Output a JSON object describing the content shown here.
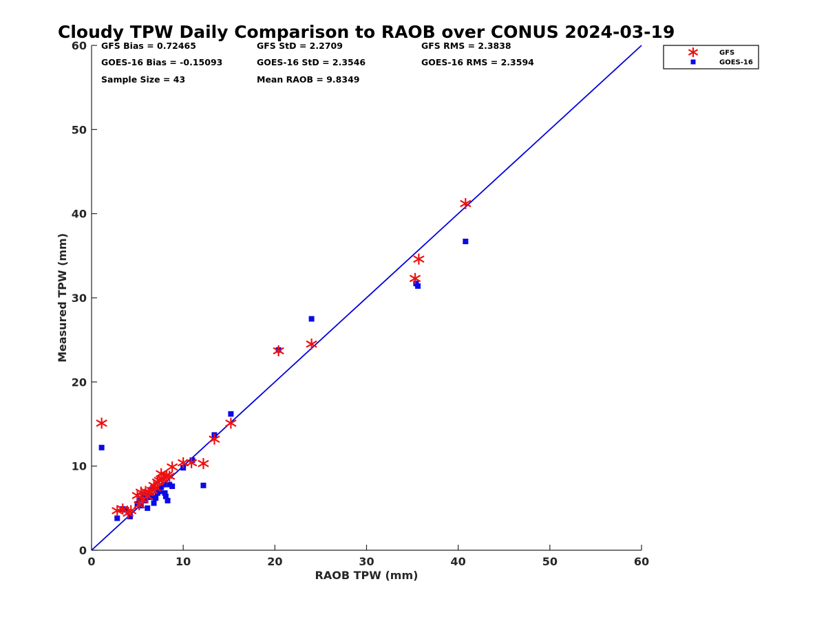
{
  "chart_data": {
    "type": "scatter",
    "title": "Cloudy TPW Daily Comparison to RAOB over CONUS 2024-03-19",
    "xlabel": "RAOB TPW (mm)",
    "ylabel": "Measured TPW (mm)",
    "xlim": [
      0,
      60
    ],
    "ylim": [
      0,
      60
    ],
    "xticks": [
      "0",
      "10",
      "20",
      "30",
      "40",
      "50",
      "60"
    ],
    "yticks": [
      "0",
      "10",
      "20",
      "30",
      "40",
      "50",
      "60"
    ],
    "grid": false,
    "legend_position": "outside-top-right",
    "reference_line": {
      "x": [
        0,
        60
      ],
      "y": [
        0,
        60
      ],
      "color": "#0000dd"
    },
    "stats": [
      [
        "GFS Bias = 0.72465",
        "GFS StD = 2.2709",
        "GFS RMS = 2.3838"
      ],
      [
        "GOES-16 Bias = -0.15093",
        "GOES-16 StD = 2.3546",
        "GOES-16 RMS = 2.3594"
      ],
      [
        "Sample Size = 43",
        "Mean RAOB = 9.8349",
        ""
      ]
    ],
    "series": [
      {
        "name": "GFS",
        "marker": "asterisk",
        "color": "#ee1111",
        "points": [
          [
            1.1,
            15.1
          ],
          [
            2.8,
            4.7
          ],
          [
            3.4,
            4.9
          ],
          [
            4.0,
            4.4
          ],
          [
            4.3,
            4.7
          ],
          [
            5.0,
            6.5
          ],
          [
            5.2,
            5.4
          ],
          [
            5.4,
            6.9
          ],
          [
            5.6,
            6.0
          ],
          [
            5.9,
            7.0
          ],
          [
            6.1,
            6.4
          ],
          [
            6.3,
            6.9
          ],
          [
            6.6,
            7.1
          ],
          [
            6.8,
            7.7
          ],
          [
            7.0,
            7.4
          ],
          [
            7.2,
            8.1
          ],
          [
            7.4,
            8.3
          ],
          [
            7.6,
            9.1
          ],
          [
            7.8,
            8.4
          ],
          [
            8.0,
            8.8
          ],
          [
            8.2,
            8.9
          ],
          [
            8.5,
            8.8
          ],
          [
            8.8,
            9.9
          ],
          [
            10.0,
            10.4
          ],
          [
            10.9,
            10.4
          ],
          [
            12.2,
            10.3
          ],
          [
            13.4,
            13.2
          ],
          [
            15.2,
            15.1
          ],
          [
            20.4,
            23.7
          ],
          [
            24.0,
            24.5
          ],
          [
            35.3,
            32.3
          ],
          [
            35.7,
            34.6
          ],
          [
            40.8,
            41.2
          ]
        ]
      },
      {
        "name": "GOES-16",
        "marker": "square",
        "color": "#0a0ae6",
        "points": [
          [
            1.1,
            12.2
          ],
          [
            2.8,
            3.8
          ],
          [
            3.4,
            4.9
          ],
          [
            3.8,
            4.8
          ],
          [
            4.2,
            4.0
          ],
          [
            5.0,
            5.5
          ],
          [
            5.2,
            6.0
          ],
          [
            5.4,
            5.3
          ],
          [
            5.6,
            6.6
          ],
          [
            5.9,
            5.9
          ],
          [
            6.1,
            5.0
          ],
          [
            6.2,
            6.4
          ],
          [
            6.5,
            6.3
          ],
          [
            6.7,
            7.4
          ],
          [
            6.8,
            5.6
          ],
          [
            7.0,
            6.2
          ],
          [
            7.2,
            6.8
          ],
          [
            7.4,
            7.0
          ],
          [
            7.6,
            7.5
          ],
          [
            7.9,
            7.8
          ],
          [
            8.0,
            6.8
          ],
          [
            8.1,
            6.4
          ],
          [
            8.3,
            5.9
          ],
          [
            8.5,
            7.8
          ],
          [
            8.8,
            7.6
          ],
          [
            10.0,
            9.8
          ],
          [
            11.0,
            10.7
          ],
          [
            12.2,
            7.7
          ],
          [
            13.4,
            13.7
          ],
          [
            15.2,
            16.2
          ],
          [
            20.4,
            23.8
          ],
          [
            24.0,
            27.5
          ],
          [
            35.4,
            31.7
          ],
          [
            35.6,
            31.4
          ],
          [
            40.8,
            36.7
          ]
        ]
      }
    ]
  }
}
